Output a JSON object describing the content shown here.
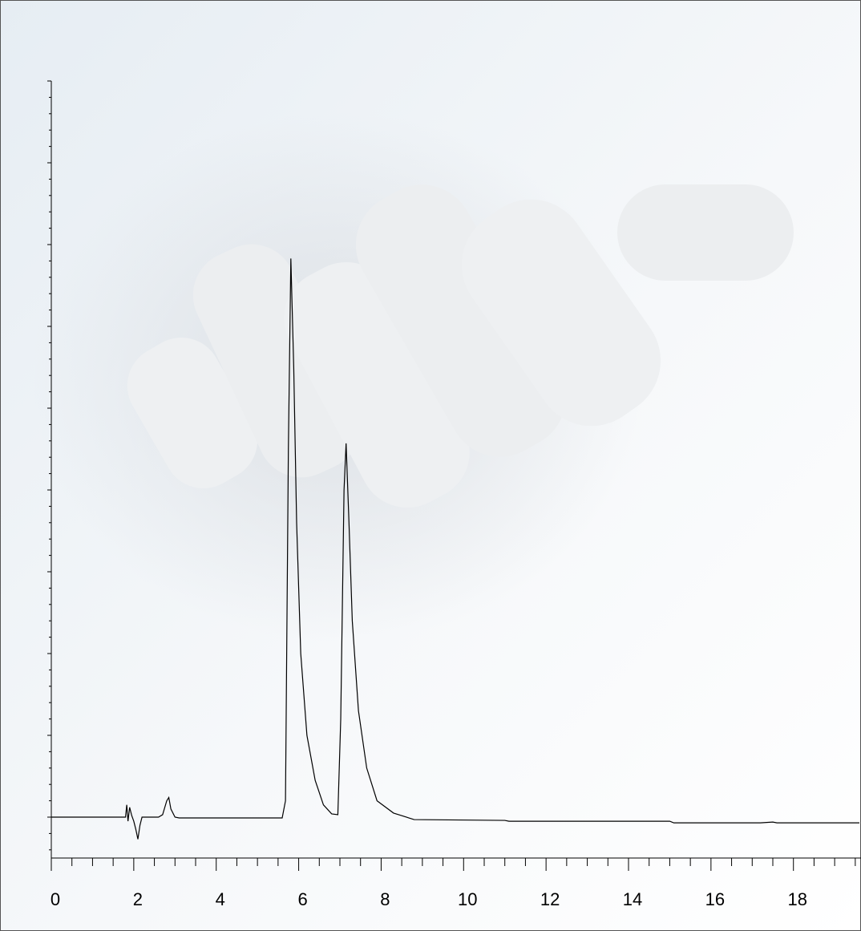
{
  "chart_data": {
    "type": "line",
    "x": [
      0,
      1.8,
      1.83,
      1.86,
      1.9,
      1.95,
      2.0,
      2.05,
      2.1,
      2.15,
      2.2,
      2.6,
      2.7,
      2.8,
      2.85,
      2.9,
      3.0,
      3.1,
      5.6,
      5.68,
      5.75,
      5.81,
      5.88,
      5.95,
      6.05,
      6.2,
      6.4,
      6.6,
      6.8,
      6.95,
      7.02,
      7.1,
      7.15,
      7.22,
      7.3,
      7.45,
      7.65,
      7.9,
      8.3,
      8.8,
      11.0,
      11.1,
      15.0,
      15.1,
      17.2,
      17.5,
      17.6,
      19.6
    ],
    "series": [
      {
        "color": "#000000",
        "values": [
          0,
          0,
          0.15,
          -0.05,
          0.12,
          0.02,
          -0.05,
          -0.15,
          -0.27,
          -0.1,
          0,
          0,
          0.03,
          0.2,
          0.24,
          0.1,
          0,
          -0.01,
          -0.01,
          0.2,
          4.5,
          6.83,
          5.5,
          3.6,
          2.0,
          1.0,
          0.45,
          0.15,
          0.04,
          0.03,
          1.2,
          4.0,
          4.57,
          3.6,
          2.4,
          1.3,
          0.6,
          0.2,
          0.05,
          -0.03,
          -0.04,
          -0.05,
          -0.05,
          -0.07,
          -0.07,
          -0.06,
          -0.07,
          -0.07
        ]
      }
    ],
    "xlim": [
      0,
      19.6
    ],
    "xticks": [
      0,
      2,
      4,
      6,
      8,
      10,
      12,
      14,
      16,
      18
    ],
    "ylim": [
      -0.5,
      9
    ],
    "yticks": [
      0,
      1,
      2,
      3,
      4,
      5,
      6,
      7,
      8,
      9
    ]
  }
}
